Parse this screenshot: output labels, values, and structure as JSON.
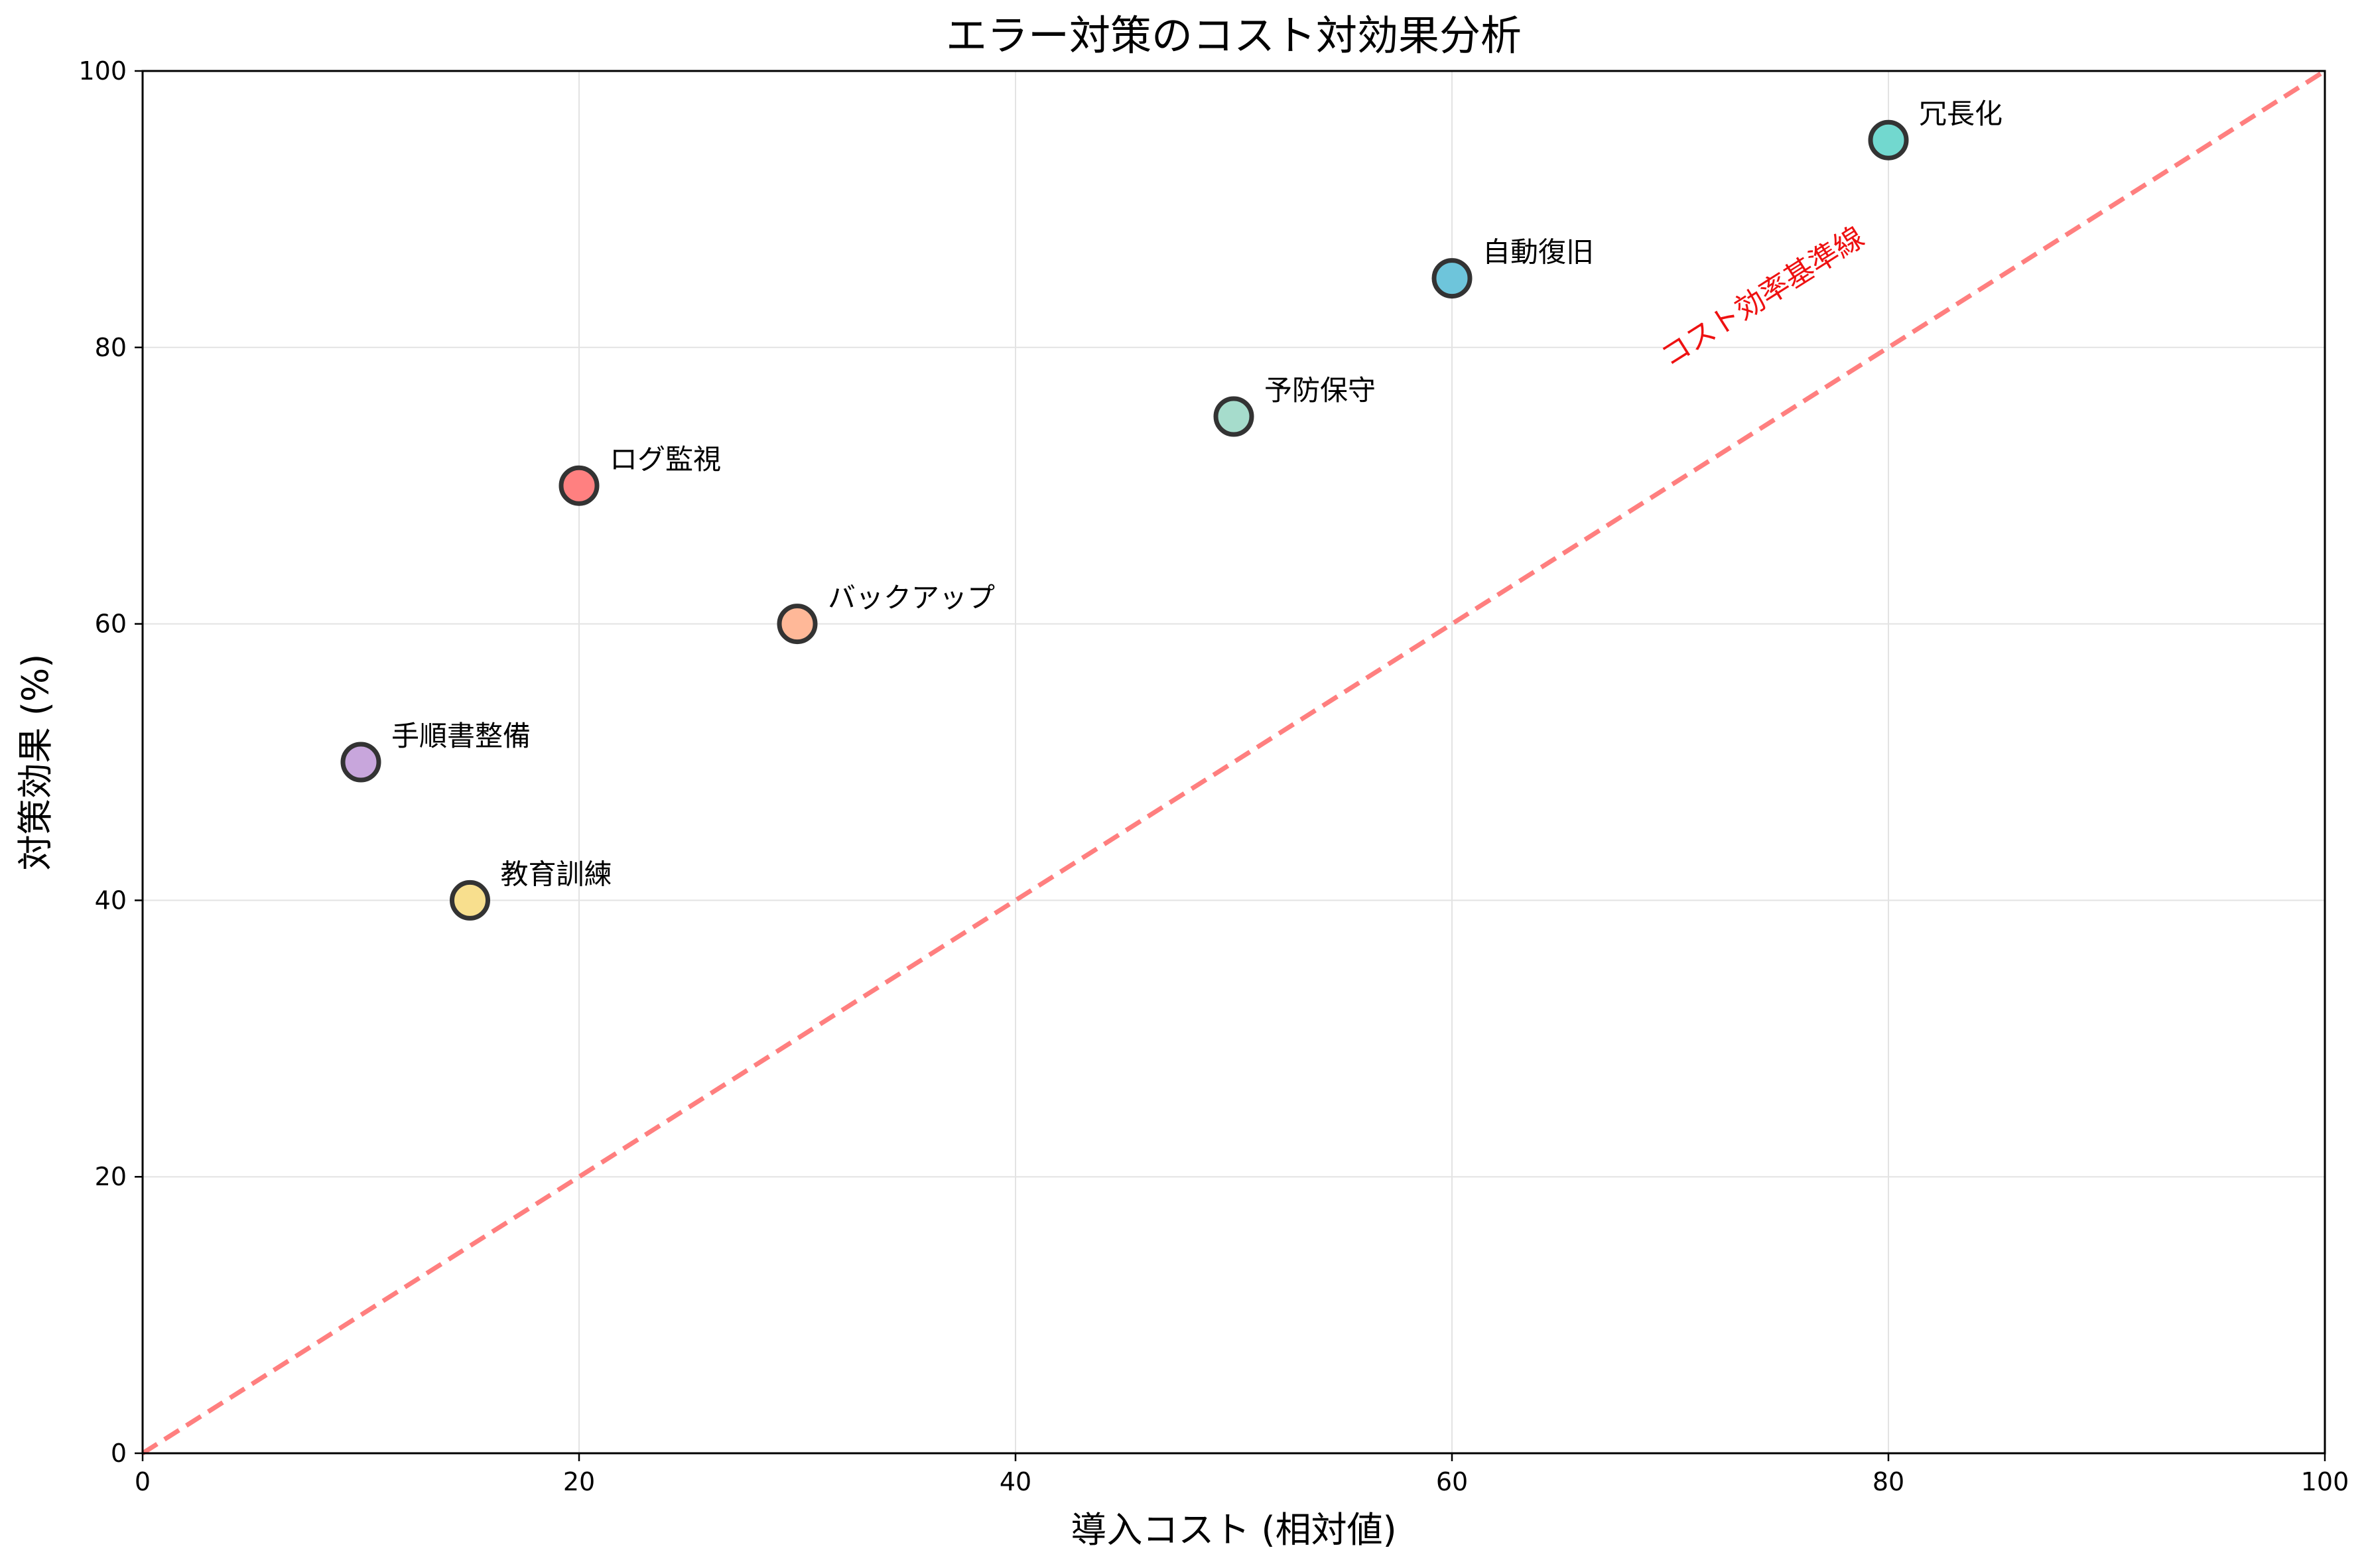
{
  "chart_data": {
    "type": "scatter",
    "title": "エラー対策のコスト対効果分析",
    "xlabel": "導入コスト (相対値)",
    "ylabel": "対策効果 (%)",
    "xlim": [
      0,
      100
    ],
    "ylim": [
      0,
      100
    ],
    "xticks": [
      0,
      20,
      40,
      60,
      80,
      100
    ],
    "yticks": [
      0,
      20,
      40,
      60,
      80,
      100
    ],
    "grid": true,
    "points": [
      {
        "label": "ログ監視",
        "x": 20,
        "y": 70,
        "color": "#ff8080"
      },
      {
        "label": "バックアップ",
        "x": 30,
        "y": 60,
        "color": "#ffb898"
      },
      {
        "label": "冗長化",
        "x": 80,
        "y": 95,
        "color": "#72d8cf"
      },
      {
        "label": "自動復旧",
        "x": 60,
        "y": 85,
        "color": "#6ec5db"
      },
      {
        "label": "教育訓練",
        "x": 15,
        "y": 40,
        "color": "#f8df8e"
      },
      {
        "label": "手順書整備",
        "x": 10,
        "y": 50,
        "color": "#c8a6dc"
      },
      {
        "label": "予防保守",
        "x": 50,
        "y": 75,
        "color": "#a6dccc"
      }
    ],
    "reference_line": {
      "label": "コスト効率基準線",
      "from": [
        0,
        0
      ],
      "to": [
        100,
        100
      ],
      "style": "dashed",
      "color": "#ff7f7f",
      "label_color": "#ee1111"
    }
  }
}
